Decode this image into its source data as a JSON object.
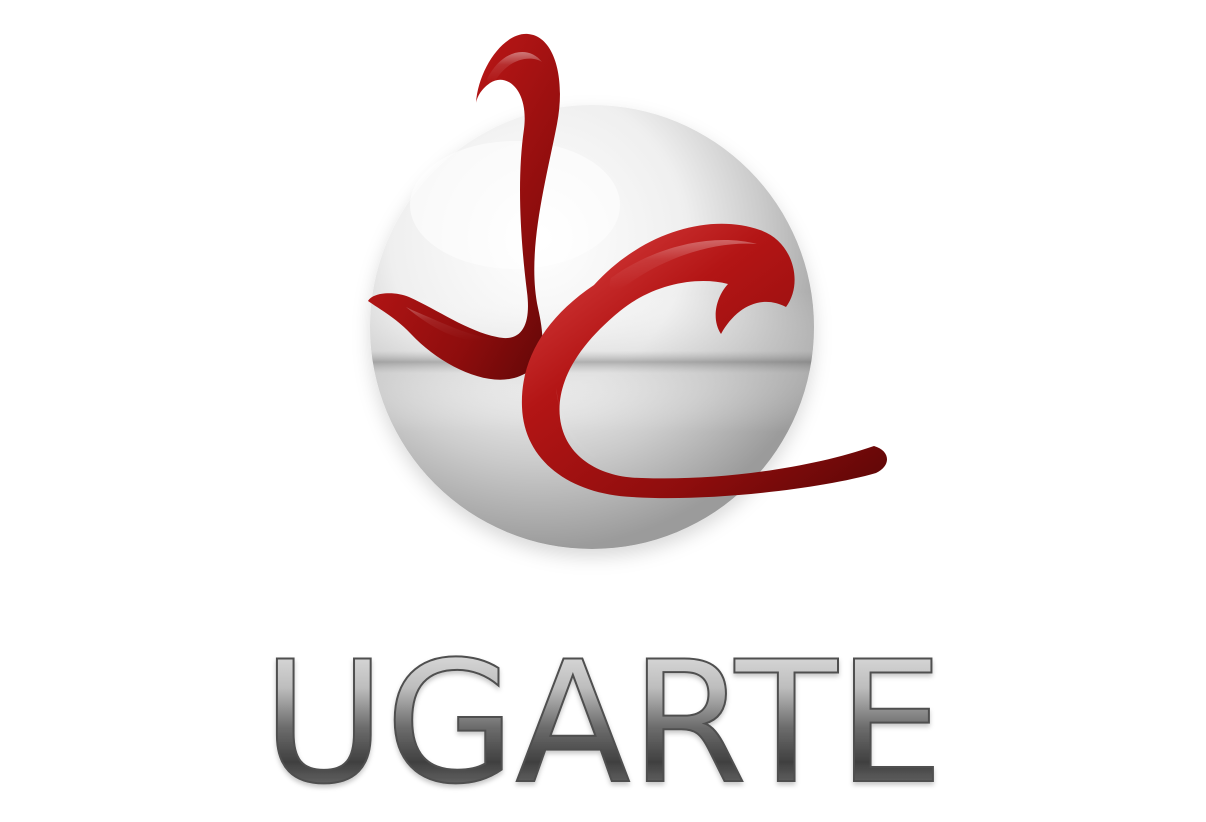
{
  "brand": {
    "emblem_initials": "JC",
    "wordmark": "UGARTE",
    "colors": {
      "emblem_red": "#b31515",
      "emblem_red_dark": "#5a0606",
      "sphere_light": "#f7f7f7",
      "sphere_dark": "#9b9b9b",
      "wordmark_light": "#d9d9d9",
      "wordmark_dark": "#3f3f3f",
      "background": "#ffffff"
    }
  },
  "icons": {
    "logo": "jc-monogram-emblem-icon",
    "sphere": "silver-sphere-icon"
  }
}
